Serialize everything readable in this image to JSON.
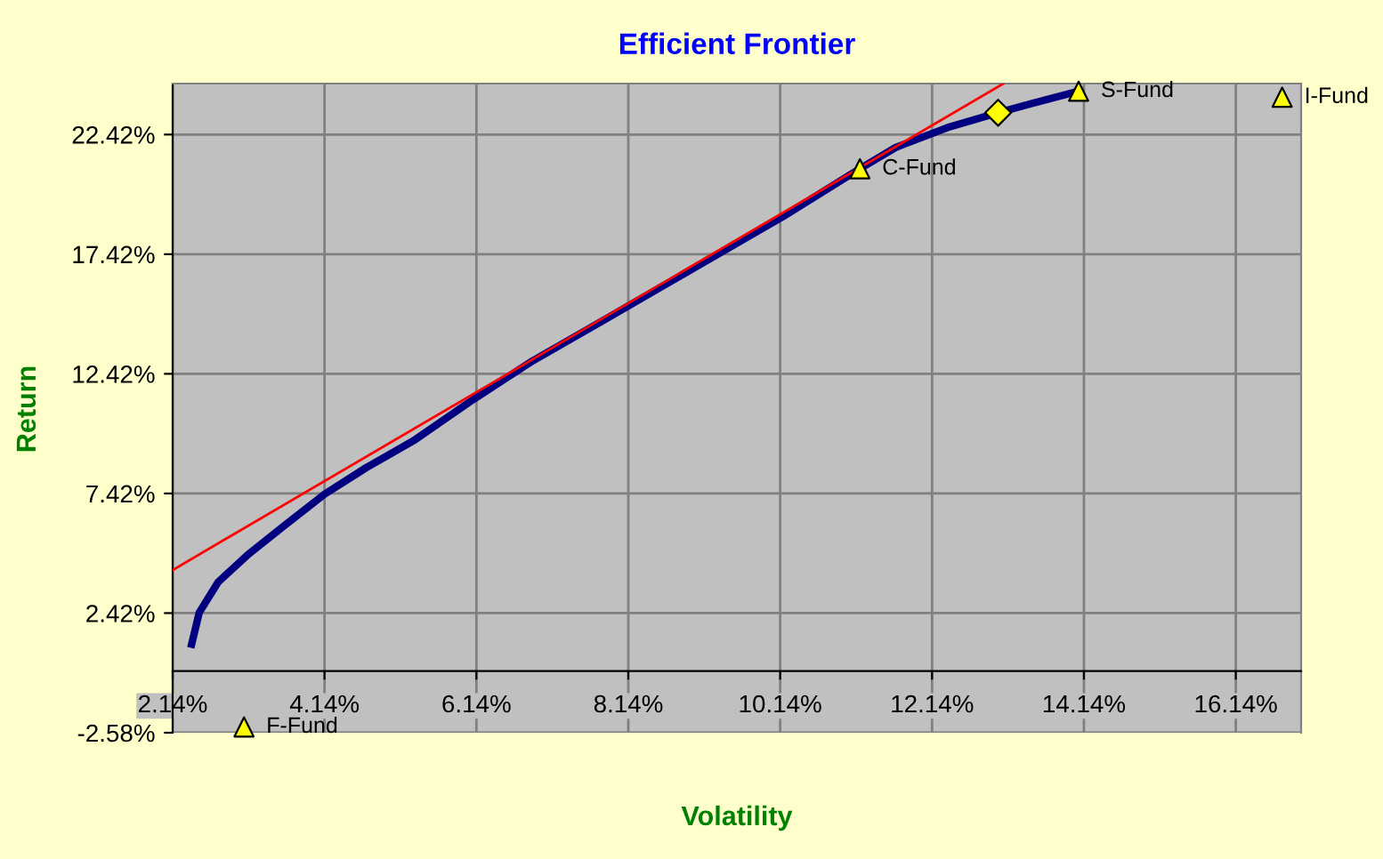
{
  "chart_data": {
    "type": "line",
    "title": "Efficient Frontier",
    "xlabel": "Volatility",
    "ylabel": "Return",
    "xlim": [
      2.14,
      17.0
    ],
    "ylim": [
      -2.58,
      24.55
    ],
    "xticks": [
      {
        "value": 2.14,
        "label": "2.14%"
      },
      {
        "value": 4.14,
        "label": "4.14%"
      },
      {
        "value": 6.14,
        "label": "6.14%"
      },
      {
        "value": 8.14,
        "label": "8.14%"
      },
      {
        "value": 10.14,
        "label": "10.14%"
      },
      {
        "value": 12.14,
        "label": "12.14%"
      },
      {
        "value": 14.14,
        "label": "14.14%"
      },
      {
        "value": 16.14,
        "label": "16.14%"
      }
    ],
    "yticks": [
      {
        "value": -2.58,
        "label": "-2.58%"
      },
      {
        "value": 2.42,
        "label": "2.42%"
      },
      {
        "value": 7.42,
        "label": "7.42%"
      },
      {
        "value": 12.42,
        "label": "12.42%"
      },
      {
        "value": 17.42,
        "label": "17.42%"
      },
      {
        "value": 22.42,
        "label": "22.42%"
      }
    ],
    "grid": true,
    "legend": false,
    "series": [
      {
        "color": "#000080",
        "marker": "none",
        "line_style": "solid",
        "x": [
          2.39,
          2.49,
          2.74,
          3.12,
          3.59,
          4.14,
          4.69,
          5.31,
          6.1,
          6.88,
          7.83,
          10.18,
          11.19,
          11.66,
          12.37,
          13.01,
          13.47,
          14.07
        ],
        "values": [
          1.12,
          2.44,
          3.72,
          4.83,
          6.02,
          7.39,
          8.5,
          9.62,
          11.35,
          12.96,
          14.69,
          19.0,
          20.99,
          21.88,
          22.74,
          23.33,
          23.73,
          24.23
        ]
      },
      {
        "color": "#ff0000",
        "marker": "none",
        "line_style": "solid",
        "x": [
          2.14,
          13.08
        ],
        "values": [
          4.22,
          24.55
        ]
      },
      {
        "type": "scatter",
        "color": "#ffff00",
        "marker": "diamond",
        "x": [
          13.01
        ],
        "values": [
          23.33
        ]
      },
      {
        "type": "scatter",
        "name": "C-Fund",
        "color": "#ffff00",
        "marker": "triangle",
        "x": [
          11.19
        ],
        "values": [
          20.99
        ]
      },
      {
        "type": "scatter",
        "name": "S-Fund",
        "color": "#ffff00",
        "marker": "triangle",
        "x": [
          14.07
        ],
        "values": [
          24.23
        ]
      },
      {
        "type": "scatter",
        "name": "I-Fund",
        "color": "#ffff00",
        "marker": "triangle",
        "x": [
          16.75
        ],
        "values": [
          23.98
        ]
      },
      {
        "type": "scatter",
        "name": "F-Fund",
        "color": "#ffff00",
        "marker": "triangle",
        "x": [
          3.08
        ],
        "values": [
          -2.34
        ]
      }
    ]
  }
}
